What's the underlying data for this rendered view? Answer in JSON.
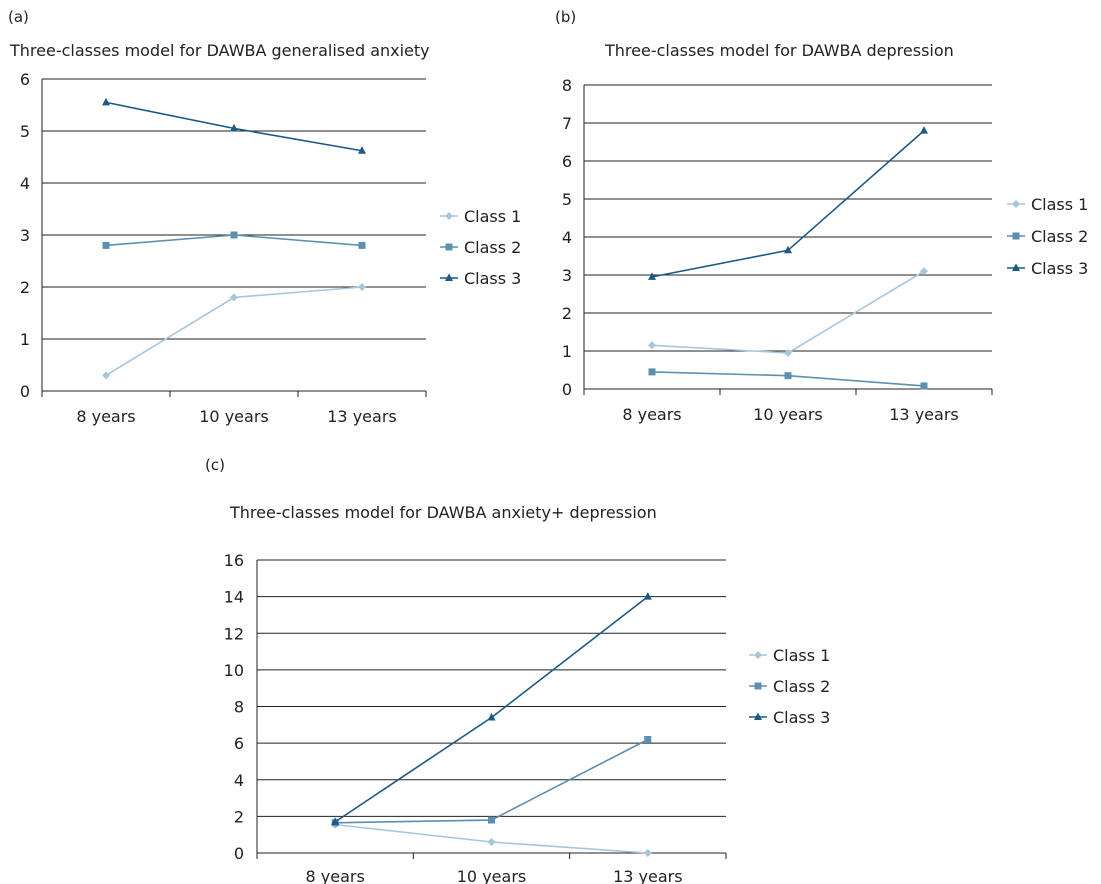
{
  "colors": {
    "class1": "#a8c6d9",
    "class2": "#5d8fb0",
    "class3": "#1a5a86",
    "grid": "#222222"
  },
  "chart_data": [
    {
      "panel": "(a)",
      "type": "line",
      "title": "Three-classes model for DAWBA generalised anxiety",
      "categories": [
        "8 years",
        "10 years",
        "13 years"
      ],
      "ylim": [
        0,
        6
      ],
      "yticks": [
        "0",
        "1",
        "2",
        "3",
        "4",
        "5",
        "6"
      ],
      "grid": true,
      "legend_position": "right",
      "series": [
        {
          "name": "Class 1",
          "marker": "diamond",
          "color": "#a8c6d9",
          "values": [
            0.3,
            1.8,
            2.0
          ]
        },
        {
          "name": "Class 2",
          "marker": "square",
          "color": "#5d8fb0",
          "values": [
            2.8,
            3.0,
            2.8
          ]
        },
        {
          "name": "Class 3",
          "marker": "triangle",
          "color": "#1a5a86",
          "values": [
            5.55,
            5.05,
            4.62
          ]
        }
      ]
    },
    {
      "panel": "(b)",
      "type": "line",
      "title": "Three-classes model for DAWBA depression",
      "categories": [
        "8 years",
        "10 years",
        "13 years"
      ],
      "ylim": [
        0,
        8
      ],
      "yticks": [
        "0",
        "1",
        "2",
        "3",
        "4",
        "5",
        "6",
        "7",
        "8"
      ],
      "grid": true,
      "legend_position": "right",
      "series": [
        {
          "name": "Class 1",
          "marker": "diamond",
          "color": "#a8c6d9",
          "values": [
            1.15,
            0.95,
            3.1
          ]
        },
        {
          "name": "Class 2",
          "marker": "square",
          "color": "#5d8fb0",
          "values": [
            0.45,
            0.35,
            0.08
          ]
        },
        {
          "name": "Class 3",
          "marker": "triangle",
          "color": "#1a5a86",
          "values": [
            2.95,
            3.65,
            6.8
          ]
        }
      ]
    },
    {
      "panel": "(c)",
      "type": "line",
      "title": "Three-classes model for DAWBA anxiety+ depression",
      "categories": [
        "8 years",
        "10 years",
        "13 years"
      ],
      "ylim": [
        0,
        16
      ],
      "yticks": [
        "0",
        "2",
        "4",
        "6",
        "8",
        "10",
        "12",
        "14",
        "16"
      ],
      "grid": true,
      "legend_position": "right",
      "series": [
        {
          "name": "Class 1",
          "marker": "diamond",
          "color": "#a8c6d9",
          "values": [
            1.55,
            0.6,
            0.0
          ]
        },
        {
          "name": "Class 2",
          "marker": "square",
          "color": "#5d8fb0",
          "values": [
            1.65,
            1.8,
            6.2
          ]
        },
        {
          "name": "Class 3",
          "marker": "triangle",
          "color": "#1a5a86",
          "values": [
            1.7,
            7.4,
            14.0
          ]
        }
      ]
    }
  ]
}
